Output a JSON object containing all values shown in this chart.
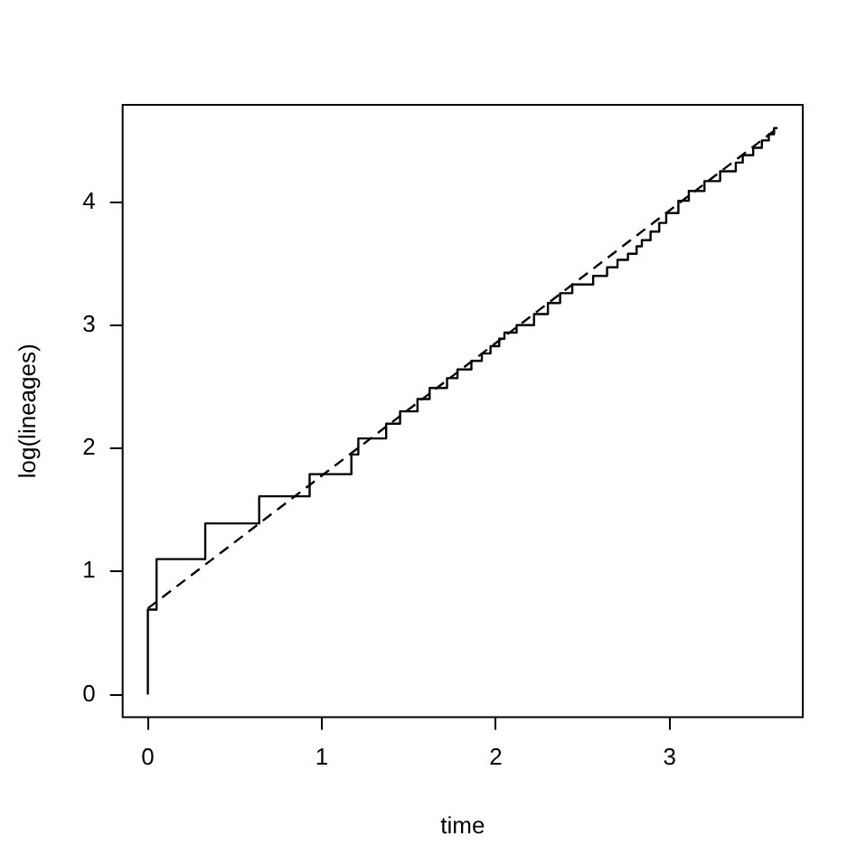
{
  "chart_data": {
    "type": "step",
    "xlabel": "time",
    "ylabel": "log(lineages)",
    "xlim": [
      -0.145,
      3.765
    ],
    "ylim": [
      -0.184,
      4.789
    ],
    "xticks": [
      0,
      1,
      2,
      3
    ],
    "yticks": [
      0,
      1,
      2,
      3,
      4
    ],
    "marker": "none",
    "grid": false,
    "legend": false,
    "series": [
      {
        "color": "#000000",
        "line_style": "solid",
        "x": [
          0,
          0,
          0.05,
          0.33,
          0.64,
          0.93,
          1.17,
          1.21,
          1.37,
          1.45,
          1.55,
          1.62,
          1.72,
          1.78,
          1.86,
          1.92,
          1.97,
          2.02,
          2.05,
          2.12,
          2.22,
          2.3,
          2.37,
          2.44,
          2.56,
          2.64,
          2.7,
          2.76,
          2.81,
          2.84,
          2.89,
          2.94,
          2.98,
          3.05,
          3.11,
          3.2,
          3.29,
          3.38,
          3.42,
          3.48,
          3.53,
          3.57,
          3.6,
          3.62
        ],
        "values": [
          0,
          0.69,
          1.1,
          1.39,
          1.61,
          1.79,
          1.95,
          2.08,
          2.2,
          2.3,
          2.4,
          2.49,
          2.57,
          2.64,
          2.71,
          2.77,
          2.83,
          2.89,
          2.94,
          3.0,
          3.09,
          3.18,
          3.26,
          3.33,
          3.4,
          3.47,
          3.53,
          3.58,
          3.64,
          3.69,
          3.76,
          3.83,
          3.91,
          4.01,
          4.09,
          4.17,
          4.25,
          4.32,
          4.38,
          4.44,
          4.5,
          4.55,
          4.6,
          4.6
        ]
      },
      {
        "type": "line",
        "color": "#000000",
        "line_style": "dashed",
        "x": [
          0,
          3.62
        ],
        "values": [
          0.7,
          4.6
        ]
      }
    ]
  }
}
